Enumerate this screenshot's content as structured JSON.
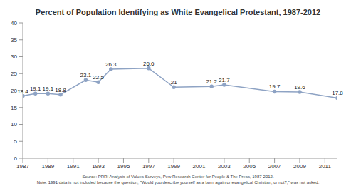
{
  "chart_data": {
    "type": "line",
    "title": "Percent of Population Identifying as White Evangelical Protestant, 1987-2012",
    "source": "Source: PRRI Analysis of Values Surveys, Pew Research Center for People & The Press, 1987-2012.",
    "note": "Note: 1991 data is not included because the question, \"Would you describe yourself as a born again or evangelical Christian, or not?,\" was not asked.",
    "x": [
      1987,
      1988,
      1989,
      1990,
      1992,
      1993,
      1994,
      1997,
      1999,
      2002,
      2003,
      2007,
      2009,
      2012
    ],
    "values": [
      18.4,
      19.1,
      19.1,
      18.8,
      23.1,
      22.5,
      26.3,
      26.6,
      21,
      21.2,
      21.7,
      19.7,
      19.6,
      17.8
    ],
    "color": "#8ea3c4",
    "marker": "circle",
    "data_labels": true,
    "grid": false,
    "xlim": [
      1987,
      2012
    ],
    "xticks": [
      1987,
      1989,
      1991,
      1993,
      1995,
      1997,
      1999,
      2001,
      2003,
      2005,
      2007,
      2009,
      2011
    ],
    "ylim": [
      0,
      40
    ],
    "yticks": [
      0,
      5,
      10,
      15,
      20,
      25,
      30,
      35,
      40
    ]
  }
}
